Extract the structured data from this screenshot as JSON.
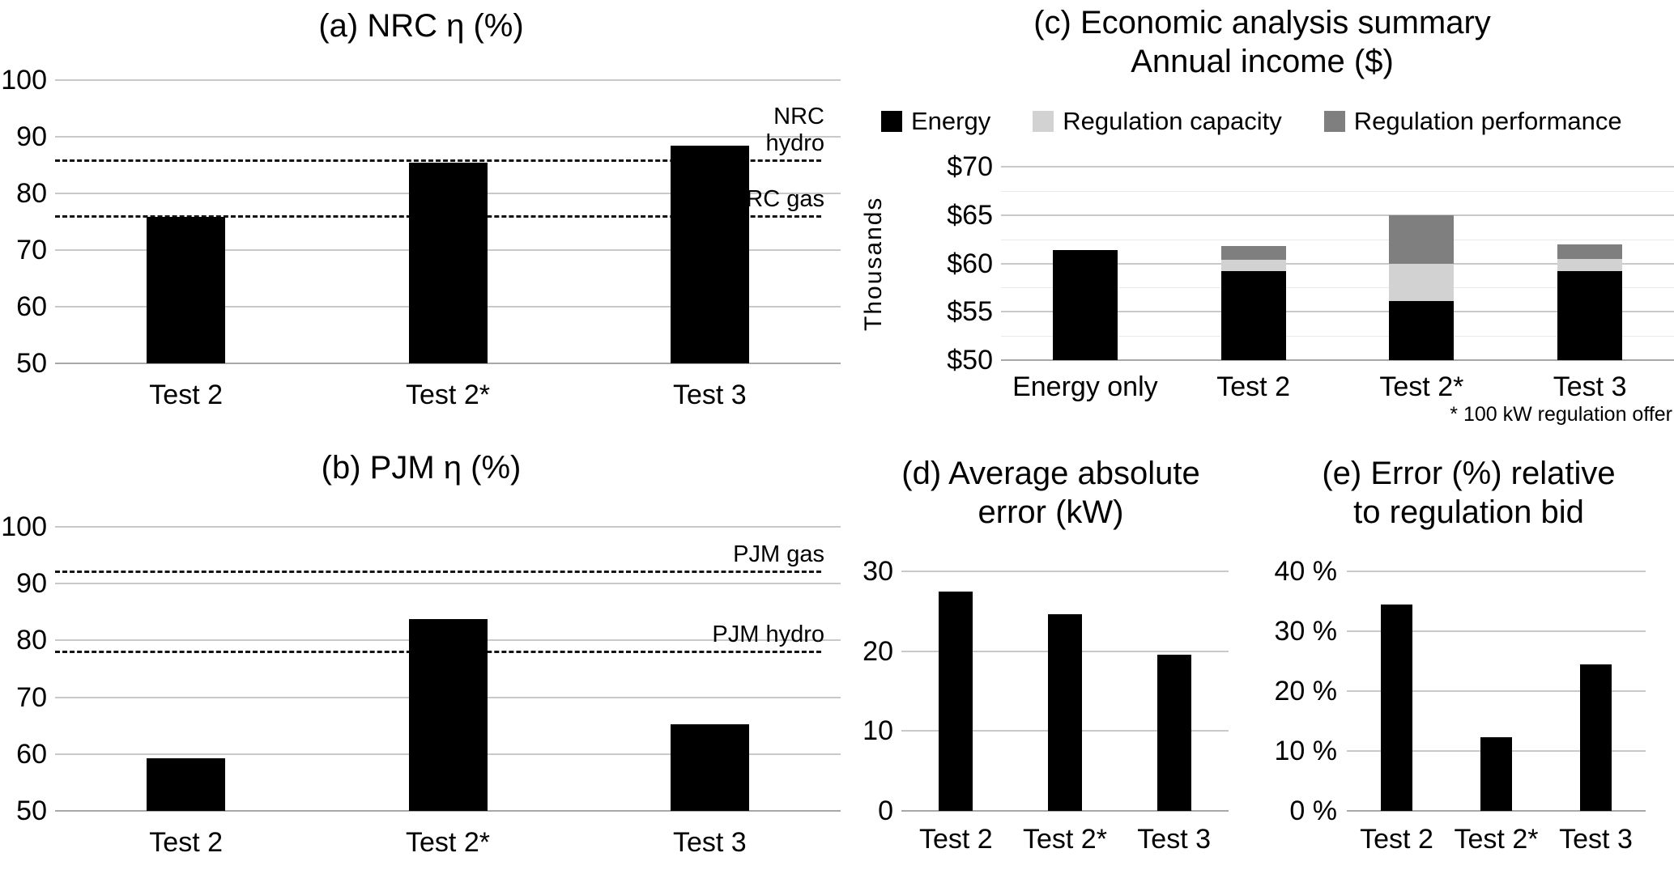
{
  "figure": {
    "background": "#ffffff",
    "text_color": "#000000",
    "gridline_color": "#c9c9c9",
    "minor_gridline_color": "#e9e9e9",
    "ref_line_color": "#141414",
    "bar_color": "#000000"
  },
  "chart_data": [
    {
      "id": "a",
      "type": "bar",
      "title": "(a) NRC η (%)",
      "title_lines": [
        "(a) NRC η (%)"
      ],
      "categories": [
        "Test 2",
        "Test 2*",
        "Test 3"
      ],
      "values": [
        75.9,
        85.4,
        88.5
      ],
      "bar_color": "#000000",
      "ylim": [
        50,
        100
      ],
      "yticks": [
        {
          "v": 50,
          "label": "50"
        },
        {
          "v": 60,
          "label": "60"
        },
        {
          "v": 70,
          "label": "70"
        },
        {
          "v": 80,
          "label": "80"
        },
        {
          "v": 90,
          "label": "90"
        },
        {
          "v": 100,
          "label": "100"
        }
      ],
      "grid": true,
      "ref_lines": [
        {
          "value": 86.0,
          "lines": [
            "NRC",
            "hydro"
          ],
          "label": "NRC hydro"
        },
        {
          "value": 76.2,
          "lines": [
            "NRC gas"
          ],
          "label": "NRC gas"
        }
      ]
    },
    {
      "id": "b",
      "type": "bar",
      "title": "(b) PJM η (%)",
      "title_lines": [
        "(b) PJM η (%)"
      ],
      "categories": [
        "Test 2",
        "Test 2*",
        "Test 3"
      ],
      "values": [
        59.3,
        83.7,
        65.2
      ],
      "bar_color": "#000000",
      "ylim": [
        50,
        100
      ],
      "yticks": [
        {
          "v": 50,
          "label": "50"
        },
        {
          "v": 60,
          "label": "60"
        },
        {
          "v": 70,
          "label": "70"
        },
        {
          "v": 80,
          "label": "80"
        },
        {
          "v": 90,
          "label": "90"
        },
        {
          "v": 100,
          "label": "100"
        }
      ],
      "grid": true,
      "ref_lines": [
        {
          "value": 92.3,
          "lines": [
            "PJM gas"
          ],
          "label": "PJM gas"
        },
        {
          "value": 78.2,
          "lines": [
            "PJM hydro"
          ],
          "label": "PJM hydro"
        }
      ]
    },
    {
      "id": "c",
      "type": "bar",
      "stacked": true,
      "title": "(c) Economic analysis summary Annual income ($)",
      "title_lines": [
        "(c) Economic analysis summary",
        "Annual income ($)"
      ],
      "ylabel": "Thousands",
      "categories": [
        "Energy only",
        "Test 2",
        "Test 2*",
        "Test 3"
      ],
      "series": [
        {
          "name": "Energy",
          "color": "#000000",
          "values": [
            61.4,
            59.2,
            56.1,
            59.2
          ]
        },
        {
          "name": "Regulation capacity",
          "color": "#d2d2d2",
          "values": [
            0,
            1.2,
            3.9,
            1.3
          ]
        },
        {
          "name": "Regulation performance",
          "color": "#7f7f7f",
          "values": [
            0,
            1.4,
            5.0,
            1.5
          ]
        }
      ],
      "stack_totals": [
        61.4,
        61.8,
        65.0,
        62.0
      ],
      "ylim": [
        50,
        70
      ],
      "yticks": [
        {
          "v": 50,
          "label": "$50"
        },
        {
          "v": 55,
          "label": "$55"
        },
        {
          "v": 60,
          "label": "$60"
        },
        {
          "v": 65,
          "label": "$65"
        },
        {
          "v": 70,
          "label": "$70"
        }
      ],
      "minor_gridlines": [
        52.5,
        57.5,
        62.5,
        67.5
      ],
      "grid": true,
      "legend_position": "top",
      "legend": [
        {
          "label": "Energy",
          "color": "#000000"
        },
        {
          "label": "Regulation capacity",
          "color": "#d2d2d2"
        },
        {
          "label": "Regulation performance",
          "color": "#7f7f7f"
        }
      ],
      "footnote": "* 100 kW regulation offer"
    },
    {
      "id": "d",
      "type": "bar",
      "title": "(d) Average absolute error (kW)",
      "title_lines": [
        "(d) Average absolute",
        "error (kW)"
      ],
      "categories": [
        "Test 2",
        "Test 2*",
        "Test 3"
      ],
      "values": [
        27.5,
        24.6,
        19.6
      ],
      "bar_color": "#000000",
      "ylim": [
        0,
        30
      ],
      "yticks": [
        {
          "v": 0,
          "label": "0"
        },
        {
          "v": 10,
          "label": "10"
        },
        {
          "v": 20,
          "label": "20"
        },
        {
          "v": 30,
          "label": "30"
        }
      ],
      "grid": true
    },
    {
      "id": "e",
      "type": "bar",
      "title": "(e) Error (%) relative to regulation bid",
      "title_lines": [
        "(e) Error (%) relative",
        "to regulation bid"
      ],
      "categories": [
        "Test 2",
        "Test 2*",
        "Test 3"
      ],
      "values": [
        34.4,
        12.3,
        24.4
      ],
      "bar_color": "#000000",
      "ylim": [
        0,
        40
      ],
      "yticks": [
        {
          "v": 0,
          "label": "0 %"
        },
        {
          "v": 10,
          "label": "10 %"
        },
        {
          "v": 20,
          "label": "20 %"
        },
        {
          "v": 30,
          "label": "30 %"
        },
        {
          "v": 40,
          "label": "40 %"
        }
      ],
      "grid": true
    }
  ]
}
